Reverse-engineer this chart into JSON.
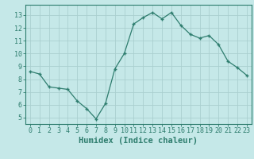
{
  "x": [
    0,
    1,
    2,
    3,
    4,
    5,
    6,
    7,
    8,
    9,
    10,
    11,
    12,
    13,
    14,
    15,
    16,
    17,
    18,
    19,
    20,
    21,
    22,
    23
  ],
  "y": [
    8.6,
    8.4,
    7.4,
    7.3,
    7.2,
    6.3,
    5.7,
    4.9,
    6.1,
    8.8,
    10.0,
    12.3,
    12.8,
    13.2,
    12.7,
    13.2,
    12.2,
    11.5,
    11.2,
    11.4,
    10.7,
    9.4,
    8.9,
    8.3
  ],
  "line_color": "#2e7d6e",
  "marker": "+",
  "marker_size": 3.5,
  "bg_color": "#c5e8e8",
  "grid_color": "#aacfcf",
  "xlabel": "Humidex (Indice chaleur)",
  "ylim": [
    4.5,
    13.8
  ],
  "xlim": [
    -0.5,
    23.5
  ],
  "yticks": [
    5,
    6,
    7,
    8,
    9,
    10,
    11,
    12,
    13
  ],
  "xticks": [
    0,
    1,
    2,
    3,
    4,
    5,
    6,
    7,
    8,
    9,
    10,
    11,
    12,
    13,
    14,
    15,
    16,
    17,
    18,
    19,
    20,
    21,
    22,
    23
  ],
  "tick_fontsize": 6,
  "xlabel_fontsize": 7.5
}
